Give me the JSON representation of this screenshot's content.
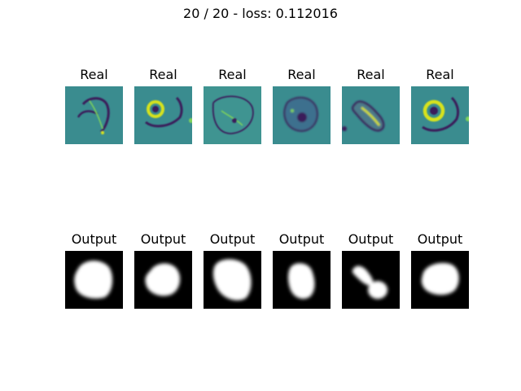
{
  "figure": {
    "title": "20 / 20 - loss: 0.112016",
    "rows": [
      {
        "label": "Real",
        "style": "viridis",
        "panels": [
          {
            "label": "Real",
            "shape": "thin-arc-cell"
          },
          {
            "label": "Real",
            "shape": "ring-cell"
          },
          {
            "label": "Real",
            "shape": "faint-outline-cell"
          },
          {
            "label": "Real",
            "shape": "blob-cell"
          },
          {
            "label": "Real",
            "shape": "elongated-cell"
          },
          {
            "label": "Real",
            "shape": "ring-cell-large"
          }
        ]
      },
      {
        "label": "Output",
        "style": "grayscale-mask",
        "panels": [
          {
            "label": "Output",
            "shape": "rounded-blob-mask"
          },
          {
            "label": "Output",
            "shape": "round-mask"
          },
          {
            "label": "Output",
            "shape": "irregular-mask"
          },
          {
            "label": "Output",
            "shape": "tall-mask"
          },
          {
            "label": "Output",
            "shape": "tail-mask"
          },
          {
            "label": "Output",
            "shape": "round-mask-large"
          }
        ]
      }
    ],
    "colors": {
      "viridis_bg": "#3a8c8f",
      "viridis_dark": "#3b1c5a",
      "viridis_bright": "#d7e21f",
      "mask_bg": "#000000",
      "mask_fg": "#ffffff"
    }
  }
}
